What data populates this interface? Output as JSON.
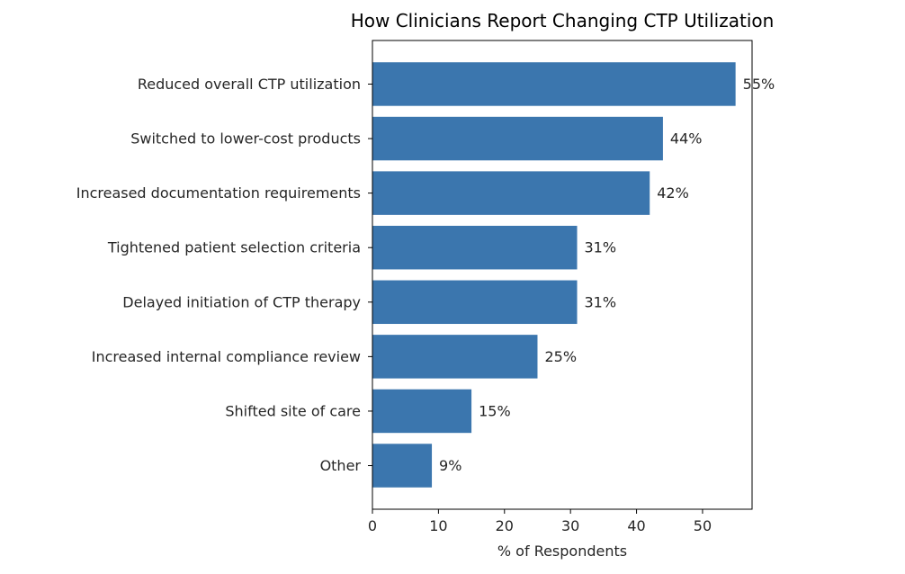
{
  "chart_data": {
    "type": "bar",
    "orientation": "horizontal",
    "title": "How Clinicians Report Changing CTP Utilization",
    "xlabel": "% of Respondents",
    "ylabel": "",
    "xlim": [
      0,
      57.5
    ],
    "xticks": [
      0,
      10,
      20,
      30,
      40,
      50
    ],
    "grid": false,
    "bar_color": "#3b76ae",
    "categories": [
      "Reduced overall CTP utilization",
      "Switched to lower-cost products",
      "Increased documentation requirements",
      "Tightened patient selection criteria",
      "Delayed initiation of CTP therapy",
      "Increased internal compliance review",
      "Shifted site of care",
      "Other"
    ],
    "values": [
      55,
      44,
      42,
      31,
      31,
      25,
      15,
      9
    ],
    "data_labels": [
      "55%",
      "44%",
      "42%",
      "31%",
      "31%",
      "25%",
      "15%",
      "9%"
    ]
  }
}
